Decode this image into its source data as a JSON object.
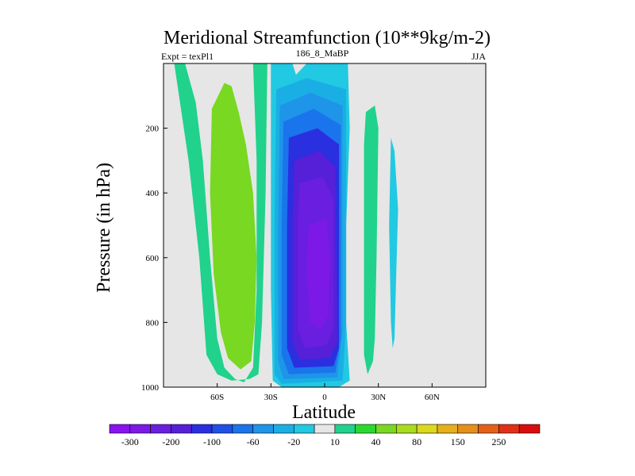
{
  "chart_data": {
    "type": "heatmap",
    "title": "Meridional Streamfunction (10**9kg/m-2)",
    "left_label": "Expt = texPl1",
    "center_label": "186_8_MaBP",
    "right_label": "JJA",
    "xlabel": "Latitude",
    "ylabel": "Pressure (in hPa)",
    "xlim": [
      -90,
      90
    ],
    "ylim": [
      1000,
      0
    ],
    "y_ticks": [
      200,
      400,
      600,
      800,
      1000
    ],
    "x_ticks": [
      {
        "value": -60,
        "label": "60S"
      },
      {
        "value": -30,
        "label": "30S"
      },
      {
        "value": 0,
        "label": "0"
      },
      {
        "value": 30,
        "label": "30N"
      },
      {
        "value": 60,
        "label": "60N"
      }
    ],
    "background_color": "#e6e6e6",
    "colorbar": {
      "colors": [
        "#8a11f0",
        "#7c19e6",
        "#6a1ee0",
        "#5520d8",
        "#2a2fe0",
        "#1f50e8",
        "#1a74ec",
        "#1e95e8",
        "#1aafe4",
        "#22c9e2",
        "#e6e6e6",
        "#20d28c",
        "#2cd830",
        "#78d822",
        "#a8dc1e",
        "#dcd81e",
        "#e6b01c",
        "#e6901a",
        "#e66018",
        "#e23016",
        "#d80c0c"
      ],
      "labels": [
        {
          "after_box": 1,
          "text": "-300"
        },
        {
          "after_box": 3,
          "text": "-200"
        },
        {
          "after_box": 5,
          "text": "-100"
        },
        {
          "after_box": 7,
          "text": "-60"
        },
        {
          "after_box": 9,
          "text": "-20"
        },
        {
          "after_box": 11,
          "text": "10"
        },
        {
          "after_box": 13,
          "text": "40"
        },
        {
          "after_box": 15,
          "text": "80"
        },
        {
          "after_box": 17,
          "text": "150"
        },
        {
          "after_box": 19,
          "text": "250"
        }
      ]
    },
    "regions": [
      {
        "name": "cell-60s-outer",
        "value": 10,
        "color": "#20d28c",
        "points": [
          [
            -84,
            0
          ],
          [
            -78,
            0
          ],
          [
            -72,
            120
          ],
          [
            -68,
            300
          ],
          [
            -64,
            600
          ],
          [
            -60,
            850
          ],
          [
            -56,
            940
          ],
          [
            -50,
            975
          ],
          [
            -45,
            985
          ],
          [
            -40,
            940
          ],
          [
            -38,
            700
          ],
          [
            -38,
            300
          ],
          [
            -40,
            0
          ],
          [
            -32,
            0
          ],
          [
            -33,
            400
          ],
          [
            -35,
            800
          ],
          [
            -37,
            960
          ],
          [
            -42,
            975
          ],
          [
            -52,
            980
          ],
          [
            -60,
            960
          ],
          [
            -66,
            900
          ],
          [
            -70,
            600
          ],
          [
            -76,
            300
          ]
        ]
      },
      {
        "name": "cell-60s-inner",
        "value": 40,
        "color": "#78d822",
        "points": [
          [
            -63,
            140
          ],
          [
            -56,
            60
          ],
          [
            -52,
            70
          ],
          [
            -48,
            150
          ],
          [
            -44,
            250
          ],
          [
            -40,
            400
          ],
          [
            -38,
            600
          ],
          [
            -39,
            800
          ],
          [
            -41,
            920
          ],
          [
            -47,
            945
          ],
          [
            -54,
            910
          ],
          [
            -58,
            830
          ],
          [
            -62,
            650
          ],
          [
            -64,
            400
          ]
        ]
      },
      {
        "name": "cell-eq-l1",
        "value": -20,
        "color": "#22c9e2",
        "points": [
          [
            -30,
            0
          ],
          [
            -18,
            0
          ],
          [
            -16,
            35
          ],
          [
            -10,
            0
          ],
          [
            13,
            0
          ],
          [
            14,
            200
          ],
          [
            12,
            500
          ],
          [
            12,
            800
          ],
          [
            14,
            980
          ],
          [
            8,
            1000
          ],
          [
            -24,
            1000
          ],
          [
            -29,
            980
          ],
          [
            -30,
            700
          ],
          [
            -30,
            300
          ]
        ]
      },
      {
        "name": "cell-eq-l2",
        "value": -60,
        "color": "#1aafe4",
        "points": [
          [
            -27,
            80
          ],
          [
            -10,
            45
          ],
          [
            12,
            80
          ],
          [
            12,
            800
          ],
          [
            10,
            980
          ],
          [
            -24,
            990
          ],
          [
            -28,
            960
          ],
          [
            -28,
            500
          ]
        ]
      },
      {
        "name": "cell-eq-l3",
        "value": -100,
        "color": "#1e95e8",
        "points": [
          [
            -25,
            130
          ],
          [
            -8,
            90
          ],
          [
            10,
            130
          ],
          [
            10,
            820
          ],
          [
            7,
            970
          ],
          [
            -23,
            975
          ],
          [
            -26,
            920
          ],
          [
            -26,
            500
          ]
        ]
      },
      {
        "name": "cell-eq-l4",
        "value": -150,
        "color": "#1a74ec",
        "points": [
          [
            -23,
            180
          ],
          [
            -6,
            140
          ],
          [
            9,
            190
          ],
          [
            9,
            850
          ],
          [
            6,
            955
          ],
          [
            -20,
            960
          ],
          [
            -24,
            900
          ],
          [
            -24,
            500
          ]
        ]
      },
      {
        "name": "cell-eq-l5",
        "value": -200,
        "color": "#2a2fe0",
        "points": [
          [
            -20,
            230
          ],
          [
            -4,
            200
          ],
          [
            8,
            250
          ],
          [
            8,
            880
          ],
          [
            5,
            935
          ],
          [
            -17,
            940
          ],
          [
            -21,
            880
          ],
          [
            -21,
            500
          ]
        ]
      },
      {
        "name": "cell-eq-l6",
        "value": -250,
        "color": "#5520d8",
        "points": [
          [
            -17,
            300
          ],
          [
            -3,
            270
          ],
          [
            6,
            320
          ],
          [
            7,
            860
          ],
          [
            3,
            910
          ],
          [
            -14,
            915
          ],
          [
            -18,
            860
          ],
          [
            -18,
            500
          ]
        ]
      },
      {
        "name": "cell-eq-l7",
        "value": -300,
        "color": "#6a1ee0",
        "points": [
          [
            -14,
            370
          ],
          [
            -1,
            350
          ],
          [
            5,
            420
          ],
          [
            5,
            820
          ],
          [
            1,
            870
          ],
          [
            -11,
            880
          ],
          [
            -15,
            820
          ],
          [
            -15,
            500
          ]
        ]
      },
      {
        "name": "cell-eq-core",
        "value": -350,
        "color": "#7c19e6",
        "points": [
          [
            -9,
            500
          ],
          [
            1,
            480
          ],
          [
            3,
            600
          ],
          [
            2,
            780
          ],
          [
            -2,
            820
          ],
          [
            -8,
            800
          ],
          [
            -10,
            650
          ]
        ]
      },
      {
        "name": "cell-30n",
        "value": 10,
        "color": "#20d28c",
        "points": [
          [
            23,
            150
          ],
          [
            28,
            130
          ],
          [
            30,
            200
          ],
          [
            29,
            600
          ],
          [
            28,
            850
          ],
          [
            27,
            920
          ],
          [
            24,
            960
          ],
          [
            22,
            900
          ],
          [
            22,
            500
          ],
          [
            22,
            250
          ]
        ]
      },
      {
        "name": "cell-40n",
        "value": -20,
        "color": "#22c9e2",
        "points": [
          [
            37,
            230
          ],
          [
            39,
            270
          ],
          [
            41,
            450
          ],
          [
            40,
            650
          ],
          [
            39,
            850
          ],
          [
            38,
            880
          ],
          [
            37,
            800
          ],
          [
            36,
            500
          ]
        ]
      }
    ]
  }
}
